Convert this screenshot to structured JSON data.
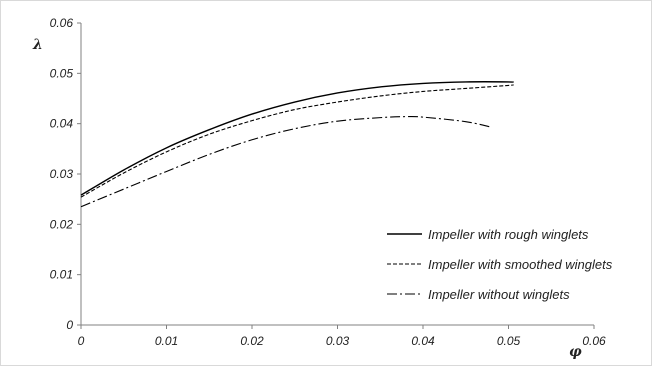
{
  "chart_data": {
    "type": "line",
    "title": "",
    "xlabel": "φ",
    "ylabel": "λ",
    "xlim": [
      0,
      0.06
    ],
    "ylim": [
      0,
      0.06
    ],
    "xticks": [
      "0",
      "0.01",
      "0.02",
      "0.03",
      "0.04",
      "0.05",
      "0.06"
    ],
    "yticks": [
      "0",
      "0.01",
      "0.02",
      "0.03",
      "0.04",
      "0.05",
      "0.06"
    ],
    "grid": false,
    "legend_position": "bottom-right",
    "series": [
      {
        "name": "Impeller with rough winglets",
        "style": "solid",
        "color": "#000000",
        "x": [
          0,
          0.005,
          0.01,
          0.015,
          0.02,
          0.025,
          0.03,
          0.035,
          0.04,
          0.045,
          0.05,
          0.0505
        ],
        "y": [
          0.0258,
          0.0308,
          0.0352,
          0.0388,
          0.0419,
          0.0443,
          0.0461,
          0.0473,
          0.048,
          0.0483,
          0.0483,
          0.0482
        ]
      },
      {
        "name": "Impeller with smoothed winglets",
        "style": "dashed",
        "color": "#000000",
        "x": [
          0,
          0.005,
          0.01,
          0.015,
          0.02,
          0.025,
          0.03,
          0.035,
          0.04,
          0.045,
          0.05,
          0.0505
        ],
        "y": [
          0.0254,
          0.0302,
          0.0344,
          0.0379,
          0.0406,
          0.0428,
          0.0443,
          0.0455,
          0.0464,
          0.047,
          0.0476,
          0.0477
        ]
      },
      {
        "name": "Impeller without winglets",
        "style": "dashdot",
        "color": "#000000",
        "x": [
          0,
          0.005,
          0.01,
          0.015,
          0.02,
          0.025,
          0.03,
          0.035,
          0.038,
          0.04,
          0.045,
          0.048
        ],
        "y": [
          0.0235,
          0.027,
          0.0305,
          0.0339,
          0.0368,
          0.039,
          0.0405,
          0.0412,
          0.0414,
          0.0413,
          0.0404,
          0.0393
        ]
      }
    ]
  }
}
